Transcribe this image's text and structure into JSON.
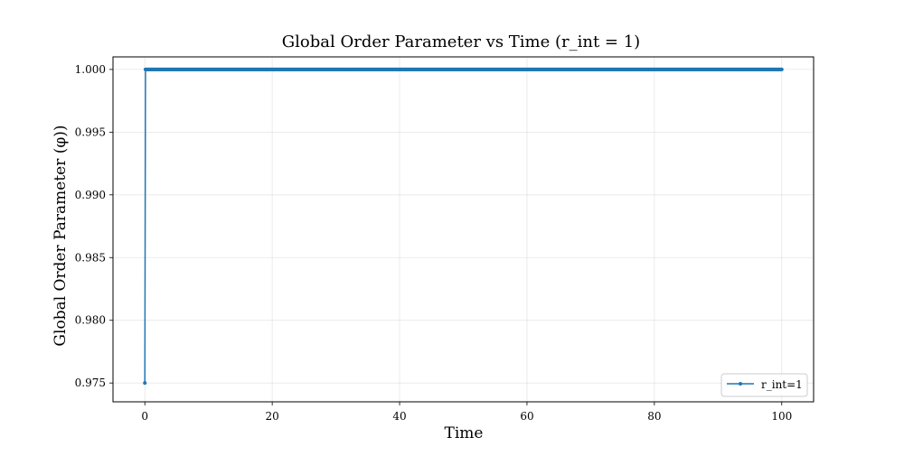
{
  "chart_data": {
    "type": "line",
    "title": "Global Order Parameter vs Time (r_int = 1)",
    "xlabel": "Time",
    "ylabel": "Global Order Parameter (φ))",
    "xlim": [
      -5,
      105
    ],
    "ylim": [
      0.9735,
      1.001
    ],
    "xticks": [
      0,
      20,
      40,
      60,
      80,
      100
    ],
    "yticks": [
      0.975,
      0.98,
      0.985,
      0.99,
      0.995,
      1.0
    ],
    "ytick_labels": [
      "0.975",
      "0.980",
      "0.985",
      "0.990",
      "0.995",
      "1.000"
    ],
    "grid": true,
    "legend_position": "bottom-right",
    "series": [
      {
        "name": "r_int=1",
        "color": "#1f77b4",
        "marker": "dot",
        "x_start": 0,
        "x_end": 100,
        "x_step": 0.1,
        "first_point": {
          "x": 0,
          "y": 0.975
        },
        "y_rest": 1.0
      }
    ]
  }
}
